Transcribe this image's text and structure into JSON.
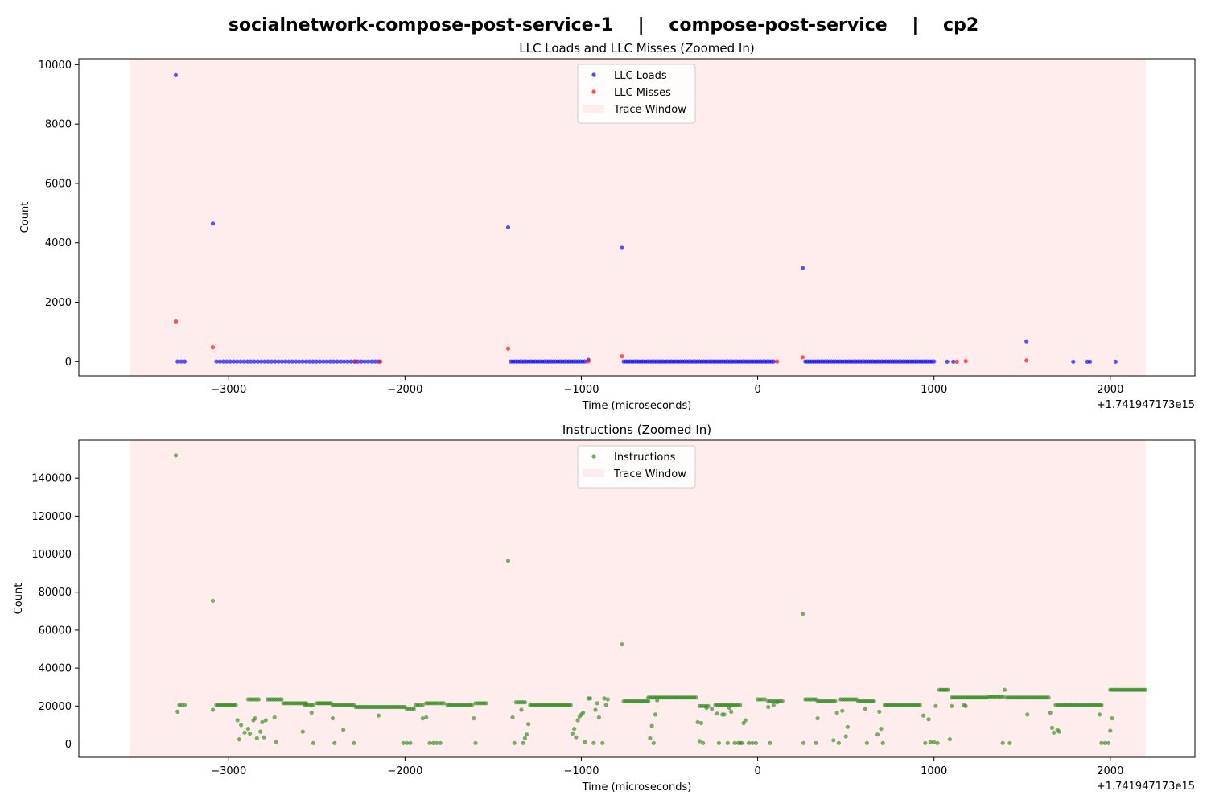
{
  "figure": {
    "suptitle": "socialnetwork-compose-post-service-1    |    compose-post-service    |    cp2"
  },
  "chart_data": [
    {
      "type": "scatter",
      "title": "LLC Loads and LLC Misses (Zoomed In)",
      "xlabel": "Time (microseconds)",
      "ylabel": "Count",
      "x_offset_label": "+1.741947173e15",
      "xlim": [
        -3850,
        2480
      ],
      "ylim": [
        -480,
        10200
      ],
      "xticks": [
        -3000,
        -2000,
        -1000,
        0,
        1000,
        2000
      ],
      "xtick_labels": [
        "−3000",
        "−2000",
        "−1000",
        "0",
        "1000",
        "2000"
      ],
      "yticks": [
        0,
        2000,
        4000,
        6000,
        8000,
        10000
      ],
      "ytick_labels": [
        "0",
        "2000",
        "4000",
        "6000",
        "8000",
        "10000"
      ],
      "grid": false,
      "legend_position": "upper-center",
      "trace_window": {
        "label": "Trace Window",
        "x_start": -3560,
        "x_end": 2200,
        "color": "#ffdddd"
      },
      "series": [
        {
          "name": "LLC Loads",
          "color": "#0000ff",
          "points": [
            [
              -3300,
              9650
            ],
            [
              -3090,
              4650
            ],
            [
              -1415,
              4520
            ],
            [
              -770,
              3830
            ],
            [
              255,
              3150
            ],
            [
              1525,
              680
            ],
            [
              -3290,
              5
            ],
            [
              -3270,
              5
            ],
            [
              -3250,
              5
            ],
            [
              1790,
              0
            ],
            [
              1870,
              0
            ],
            [
              1885,
              0
            ],
            [
              2030,
              0
            ],
            [
              -960,
              60
            ],
            [
              1075,
              0
            ],
            [
              1110,
              0
            ]
          ],
          "runs": [
            [
              -3070,
              -2150,
              5,
              48
            ],
            [
              -1400,
              -980,
              5,
              34
            ],
            [
              -760,
              90,
              5,
              70
            ],
            [
              270,
              1000,
              5,
              60
            ]
          ]
        },
        {
          "name": "LLC Misses",
          "color": "#ff0000",
          "points": [
            [
              -3300,
              1350
            ],
            [
              -3090,
              480
            ],
            [
              -1415,
              440
            ],
            [
              -770,
              180
            ],
            [
              255,
              150
            ],
            [
              1525,
              40
            ],
            [
              -2280,
              5
            ],
            [
              -2140,
              5
            ],
            [
              -960,
              10
            ],
            [
              110,
              5
            ],
            [
              1180,
              20
            ],
            [
              1130,
              0
            ]
          ],
          "runs": []
        }
      ]
    },
    {
      "type": "scatter",
      "title": "Instructions (Zoomed In)",
      "xlabel": "Time (microseconds)",
      "ylabel": "Count",
      "x_offset_label": "+1.741947173e15",
      "xlim": [
        -3850,
        2480
      ],
      "ylim": [
        -7000,
        160000
      ],
      "xticks": [
        -3000,
        -2000,
        -1000,
        0,
        1000,
        2000
      ],
      "xtick_labels": [
        "−3000",
        "−2000",
        "−1000",
        "0",
        "1000",
        "2000"
      ],
      "yticks": [
        0,
        20000,
        40000,
        60000,
        80000,
        100000,
        120000,
        140000
      ],
      "ytick_labels": [
        "0",
        "20000",
        "40000",
        "60000",
        "80000",
        "100000",
        "120000",
        "140000"
      ],
      "grid": false,
      "legend_position": "upper-center",
      "trace_window": {
        "label": "Trace Window",
        "x_start": -3560,
        "x_end": 2200,
        "color": "#ffdddd"
      },
      "series": [
        {
          "name": "Instructions",
          "color": "#2e8b1e",
          "points": [
            [
              -3300,
              152000
            ],
            [
              -3090,
              75500
            ],
            [
              -1415,
              96500
            ],
            [
              -770,
              52500
            ],
            [
              255,
              68500
            ],
            [
              -3290,
              17000
            ],
            [
              -3280,
              20500
            ],
            [
              -3265,
              20500
            ],
            [
              -3250,
              20500
            ],
            [
              -3090,
              18000
            ],
            [
              -2950,
              12500
            ],
            [
              -2940,
              2500
            ],
            [
              -2930,
              10000
            ],
            [
              -2910,
              6000
            ],
            [
              -2890,
              8000
            ],
            [
              -2880,
              5500
            ],
            [
              -2860,
              12500
            ],
            [
              -2850,
              13500
            ],
            [
              -2840,
              3000
            ],
            [
              -2820,
              6500
            ],
            [
              -2810,
              11500
            ],
            [
              -2800,
              3500
            ],
            [
              -2790,
              12500
            ],
            [
              -2740,
              14000
            ],
            [
              -2730,
              1000
            ],
            [
              -2580,
              6500
            ],
            [
              -2530,
              16500
            ],
            [
              -2520,
              500
            ],
            [
              -2410,
              13500
            ],
            [
              -2400,
              500
            ],
            [
              -2350,
              7500
            ],
            [
              -2290,
              500
            ],
            [
              -2150,
              15000
            ],
            [
              -2010,
              500
            ],
            [
              -1990,
              500
            ],
            [
              -1970,
              500
            ],
            [
              -1900,
              13500
            ],
            [
              -1880,
              14000
            ],
            [
              -1860,
              500
            ],
            [
              -1840,
              500
            ],
            [
              -1820,
              500
            ],
            [
              -1800,
              500
            ],
            [
              -1610,
              13500
            ],
            [
              -1600,
              500
            ],
            [
              -1390,
              14000
            ],
            [
              -1380,
              500
            ],
            [
              -1340,
              18000
            ],
            [
              -1330,
              500
            ],
            [
              -1320,
              3000
            ],
            [
              -1310,
              5000
            ],
            [
              -1300,
              10500
            ],
            [
              -1050,
              5500
            ],
            [
              -1040,
              8000
            ],
            [
              -1030,
              3500
            ],
            [
              -1020,
              12500
            ],
            [
              -1010,
              14500
            ],
            [
              -1000,
              15500
            ],
            [
              -990,
              16500
            ],
            [
              -980,
              1000
            ],
            [
              -960,
              24000
            ],
            [
              -950,
              24000
            ],
            [
              -930,
              500
            ],
            [
              -920,
              18000
            ],
            [
              -910,
              21500
            ],
            [
              -900,
              14000
            ],
            [
              -880,
              500
            ],
            [
              -870,
              24000
            ],
            [
              -860,
              20500
            ],
            [
              -850,
              23500
            ],
            [
              -610,
              3000
            ],
            [
              -600,
              9500
            ],
            [
              -590,
              500
            ],
            [
              -580,
              15500
            ],
            [
              -570,
              23000
            ],
            [
              -340,
              11500
            ],
            [
              -330,
              1500
            ],
            [
              -320,
              11000
            ],
            [
              -310,
              500
            ],
            [
              -290,
              19000
            ],
            [
              -260,
              18500
            ],
            [
              -230,
              16000
            ],
            [
              -220,
              500
            ],
            [
              -200,
              15500
            ],
            [
              -190,
              15500
            ],
            [
              -170,
              500
            ],
            [
              -160,
              19000
            ],
            [
              -150,
              17000
            ],
            [
              -130,
              500
            ],
            [
              -110,
              500
            ],
            [
              -100,
              500
            ],
            [
              -90,
              500
            ],
            [
              -80,
              11000
            ],
            [
              -70,
              12500
            ],
            [
              -50,
              500
            ],
            [
              -30,
              500
            ],
            [
              -10,
              500
            ],
            [
              60,
              19500
            ],
            [
              70,
              500
            ],
            [
              90,
              20500
            ],
            [
              110,
              22000
            ],
            [
              260,
              500
            ],
            [
              330,
              500
            ],
            [
              340,
              13500
            ],
            [
              430,
              2000
            ],
            [
              450,
              16500
            ],
            [
              460,
              500
            ],
            [
              480,
              17500
            ],
            [
              500,
              4000
            ],
            [
              510,
              9000
            ],
            [
              610,
              18500
            ],
            [
              620,
              500
            ],
            [
              680,
              5000
            ],
            [
              690,
              17000
            ],
            [
              700,
              8000
            ],
            [
              710,
              500
            ],
            [
              940,
              15000
            ],
            [
              950,
              500
            ],
            [
              970,
              13000
            ],
            [
              980,
              1000
            ],
            [
              1000,
              1000
            ],
            [
              1010,
              20000
            ],
            [
              1020,
              500
            ],
            [
              1090,
              2500
            ],
            [
              1100,
              20000
            ],
            [
              1170,
              20500
            ],
            [
              1180,
              20000
            ],
            [
              1390,
              500
            ],
            [
              1400,
              28500
            ],
            [
              1430,
              500
            ],
            [
              1530,
              15500
            ],
            [
              1660,
              16500
            ],
            [
              1670,
              8500
            ],
            [
              1680,
              6000
            ],
            [
              1700,
              7500
            ],
            [
              1710,
              6500
            ],
            [
              1940,
              15500
            ],
            [
              1950,
              500
            ],
            [
              1970,
              500
            ],
            [
              1990,
              500
            ],
            [
              2000,
              7000
            ],
            [
              2010,
              13500
            ]
          ],
          "runs": [
            [
              -3070,
              -2960,
              20500,
              12
            ],
            [
              -2890,
              -2830,
              23500,
              6
            ],
            [
              -2780,
              -2700,
              23500,
              8
            ],
            [
              -2690,
              -2560,
              21500,
              13
            ],
            [
              -2570,
              -2520,
              20500,
              5
            ],
            [
              -2500,
              -2420,
              21500,
              10
            ],
            [
              -2410,
              -2290,
              20500,
              12
            ],
            [
              -2280,
              -2000,
              19500,
              28
            ],
            [
              -1990,
              -1950,
              18500,
              4
            ],
            [
              -1940,
              -1900,
              20500,
              4
            ],
            [
              -1880,
              -1780,
              21500,
              10
            ],
            [
              -1760,
              -1620,
              20500,
              14
            ],
            [
              -1600,
              -1540,
              21500,
              6
            ],
            [
              -1370,
              -1320,
              22000,
              5
            ],
            [
              -1290,
              -1060,
              20500,
              24
            ],
            [
              -760,
              -620,
              22500,
              14
            ],
            [
              -620,
              -350,
              24500,
              27
            ],
            [
              -330,
              -280,
              20000,
              5
            ],
            [
              -240,
              -100,
              20500,
              14
            ],
            [
              0,
              40,
              23500,
              4
            ],
            [
              60,
              140,
              22500,
              8
            ],
            [
              270,
              330,
              23500,
              6
            ],
            [
              340,
              440,
              22500,
              10
            ],
            [
              470,
              560,
              23500,
              9
            ],
            [
              570,
              660,
              22500,
              9
            ],
            [
              720,
              920,
              20500,
              20
            ],
            [
              1030,
              1080,
              28500,
              6
            ],
            [
              1100,
              1300,
              24500,
              20
            ],
            [
              1310,
              1390,
              25000,
              8
            ],
            [
              1410,
              1520,
              24500,
              11
            ],
            [
              1530,
              1650,
              24500,
              12
            ],
            [
              1690,
              1950,
              20500,
              26
            ],
            [
              2000,
              2200,
              28500,
              20
            ]
          ]
        }
      ]
    }
  ]
}
